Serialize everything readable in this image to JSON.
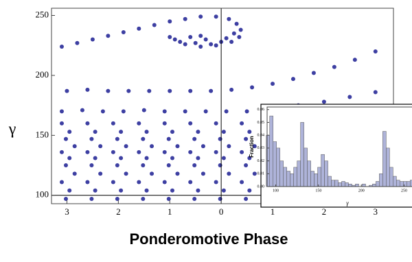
{
  "chart_data": [
    {
      "type": "scatter",
      "ylabel": "γ",
      "xlabel": "Ponderomotive Phase",
      "color": "#3d3fa2",
      "xlim": [
        -3.3,
        3.35
      ],
      "ylim": [
        93,
        256
      ],
      "xticks": [
        {
          "value": -3,
          "label": "3"
        },
        {
          "value": -2,
          "label": "2"
        },
        {
          "value": -1,
          "label": "1"
        },
        0,
        1,
        2,
        3
      ],
      "yticks": [
        100,
        150,
        200,
        250
      ],
      "axes_origin": [
        0,
        100
      ],
      "x": [
        -3.1,
        -2.8,
        -2.5,
        -2.2,
        -1.9,
        -1.6,
        -1.3,
        -1.0,
        -0.7,
        -0.4,
        -0.1,
        0.15,
        0.3,
        0.38,
        0.35,
        0.2,
        -0.1,
        -0.4,
        -0.7,
        -0.9,
        -0.6,
        -0.3,
        0.0,
        -0.8,
        -0.5,
        -0.2,
        0.1,
        -1.0,
        0.25,
        -0.4,
        -3.0,
        -2.6,
        -2.2,
        -1.8,
        -1.4,
        -1.0,
        -0.6,
        -0.2,
        0.2,
        0.6,
        1.0,
        1.4,
        1.8,
        2.2,
        2.6,
        3.0,
        1.0,
        1.5,
        2.0,
        2.5,
        3.0,
        -3.1,
        -2.7,
        -2.3,
        -1.9,
        -1.5,
        -1.1,
        -0.7,
        -0.3,
        0.1,
        0.5,
        -3.1,
        -2.6,
        -2.1,
        -1.6,
        -1.1,
        -0.6,
        -0.1,
        0.4,
        -2.95,
        -2.45,
        -1.95,
        -1.45,
        -0.95,
        -0.45,
        0.05,
        0.55,
        -3.02,
        -2.52,
        -2.02,
        -1.52,
        -1.02,
        -0.52,
        -0.02,
        0.48,
        -2.85,
        -2.35,
        -1.85,
        -1.35,
        -0.85,
        -0.35,
        0.15,
        0.65,
        -3.1,
        -2.6,
        -2.1,
        -1.6,
        -1.1,
        -0.6,
        -0.1,
        0.4,
        -2.95,
        -2.45,
        -1.95,
        -1.45,
        -0.95,
        -0.45,
        0.05,
        0.55,
        -3.02,
        -2.52,
        -2.02,
        -1.52,
        -1.02,
        -0.52,
        -0.02,
        0.48,
        -2.85,
        -2.35,
        -1.85,
        -1.35,
        -0.85,
        -0.35,
        0.15,
        0.65,
        -3.1,
        -2.6,
        -2.1,
        -1.6,
        -1.1,
        -0.6,
        -0.1,
        0.4,
        -2.95,
        -2.45,
        -1.95,
        -1.45,
        -0.95,
        -0.45,
        0.05,
        0.55,
        -3.02,
        -2.52,
        -2.02,
        -1.52,
        -1.02,
        -0.52,
        -0.02,
        0.48
      ],
      "values": [
        224,
        227,
        230,
        233,
        236,
        239,
        242,
        245,
        247,
        249,
        249,
        247,
        243,
        238,
        232,
        228,
        225,
        224,
        226,
        230,
        232,
        230,
        228,
        228,
        227,
        226,
        231,
        232,
        235,
        233,
        187,
        188,
        187,
        187,
        187,
        187,
        187,
        187,
        188,
        190,
        193,
        197,
        202,
        207,
        213,
        220,
        172,
        175,
        178,
        182,
        186,
        170,
        171,
        170,
        170,
        171,
        170,
        170,
        170,
        170,
        170,
        160,
        160,
        160,
        160,
        160,
        160,
        160,
        160,
        153,
        153,
        153,
        153,
        153,
        153,
        153,
        153,
        147,
        147,
        147,
        147,
        147,
        147,
        147,
        147,
        141,
        141,
        141,
        141,
        141,
        141,
        141,
        141,
        136,
        136,
        136,
        136,
        136,
        136,
        136,
        136,
        131,
        131,
        131,
        131,
        131,
        131,
        131,
        131,
        125,
        125,
        125,
        125,
        125,
        125,
        125,
        125,
        118,
        118,
        118,
        118,
        118,
        118,
        118,
        118,
        111,
        111,
        111,
        111,
        111,
        111,
        111,
        111,
        104,
        104,
        104,
        104,
        104,
        104,
        104,
        104,
        97,
        97,
        97,
        97,
        97,
        97,
        97,
        97
      ]
    },
    {
      "type": "histogram",
      "ylabel": "Fraction",
      "xlabel": "γ",
      "color": "#aeb3d9",
      "xlim": [
        90,
        268
      ],
      "ylim": [
        0,
        0.062
      ],
      "xticks": [
        100,
        150,
        200,
        250
      ],
      "yticks": [
        {
          "value": 0,
          "label": "0.00"
        },
        {
          "value": 0.01,
          "label": "0.01"
        },
        {
          "value": 0.02,
          "label": "0.02"
        },
        {
          "value": 0.03,
          "label": "0.03"
        },
        {
          "value": 0.04,
          "label": "0.04"
        },
        {
          "value": 0.05,
          "label": "0.05"
        },
        {
          "value": 0.06,
          "label": "0.06"
        }
      ],
      "bins": [
        89,
        93,
        97,
        101,
        105,
        109,
        113,
        117,
        121,
        125,
        129,
        133,
        137,
        141,
        145,
        149,
        153,
        157,
        161,
        165,
        169,
        173,
        177,
        181,
        185,
        189,
        193,
        197,
        201,
        205,
        209,
        213,
        217,
        221,
        225,
        229,
        233,
        237,
        241,
        245,
        249,
        253,
        257,
        261
      ],
      "values": [
        0.04,
        0.055,
        0.035,
        0.03,
        0.02,
        0.015,
        0.012,
        0.01,
        0.015,
        0.02,
        0.05,
        0.03,
        0.02,
        0.012,
        0.01,
        0.015,
        0.025,
        0.02,
        0.008,
        0.005,
        0.005,
        0.003,
        0.004,
        0.003,
        0.002,
        0.001,
        0.002,
        0,
        0.002,
        0,
        0.001,
        0.002,
        0.004,
        0.01,
        0.043,
        0.03,
        0.015,
        0.008,
        0.005,
        0.004,
        0.004,
        0.004,
        0.005
      ]
    }
  ]
}
